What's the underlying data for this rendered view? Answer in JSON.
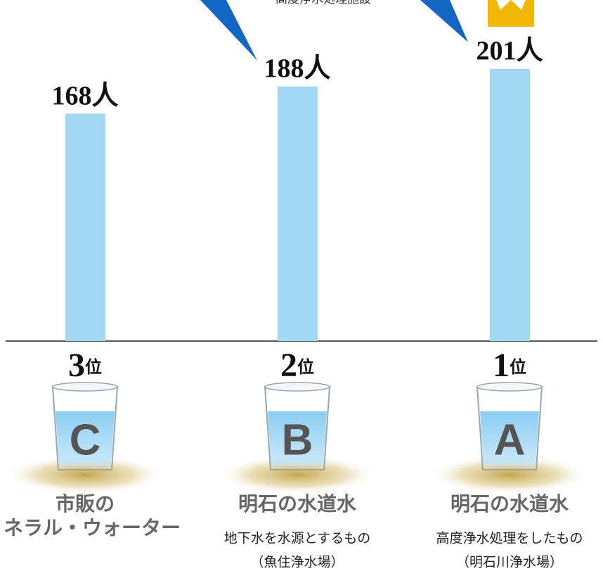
{
  "callout": "高度浄水処理施設",
  "chart_data": {
    "type": "bar",
    "categories": [
      "C",
      "B",
      "A"
    ],
    "values": [
      168,
      188,
      201
    ],
    "value_labels": [
      "168人",
      "188人",
      "201人"
    ],
    "color": "#a3d8f4",
    "ranks": [
      {
        "number": "3",
        "suffix": "位"
      },
      {
        "number": "2",
        "suffix": "位"
      },
      {
        "number": "1",
        "suffix": "位"
      }
    ],
    "names": [
      [
        "市販の",
        "ミネラル・ウォーター"
      ],
      [
        "明石の水道水"
      ],
      [
        "明石の水道水"
      ]
    ],
    "descriptions": [
      [],
      [
        "地下水を水源とするもの",
        "（魚住浄水場）"
      ],
      [
        "高度浄水処理をしたもの",
        "（明石川浄水場）"
      ]
    ]
  }
}
